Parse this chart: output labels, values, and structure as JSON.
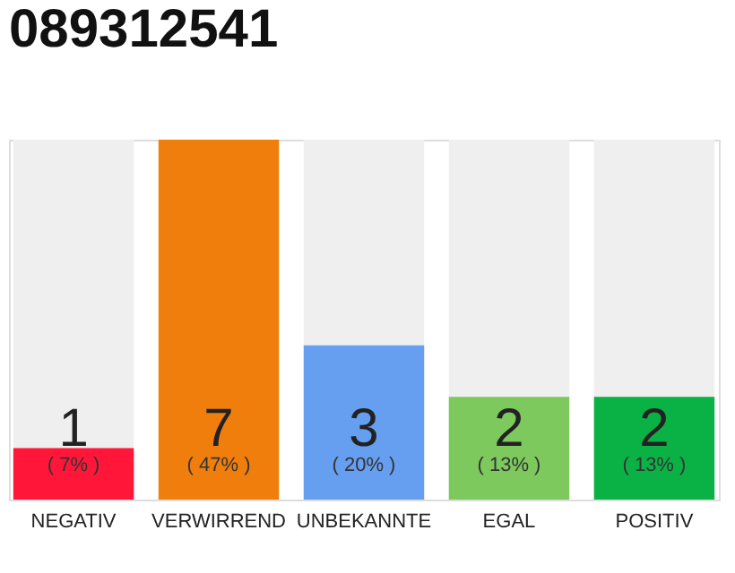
{
  "chart_data": {
    "type": "bar",
    "title": "089312541",
    "categories": [
      "NEGATIV",
      "VERWIRREND",
      "UNBEKANNTE",
      "EGAL",
      "POSITIV"
    ],
    "values": [
      1,
      7,
      3,
      2,
      2
    ],
    "colors": [
      "#ff1639",
      "#f07e0d",
      "#669ff0",
      "#7dc95e",
      "#0ab245"
    ],
    "ylim": [
      0,
      7
    ],
    "tick_labels": "x",
    "data_labels": true,
    "annotations": [
      "( 7% )",
      "( 47% )",
      "( 20% )",
      "( 13% )",
      "( 13% )"
    ]
  }
}
